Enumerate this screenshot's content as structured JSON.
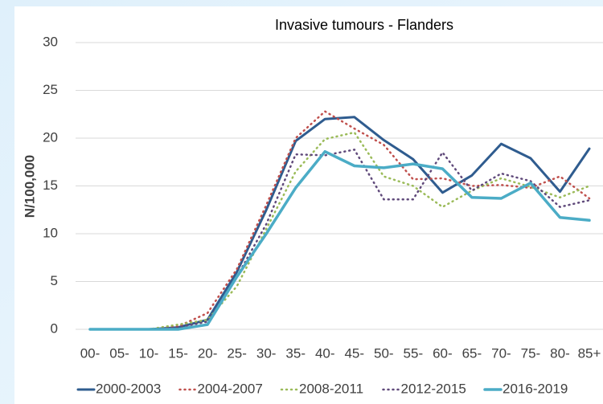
{
  "chart_data": {
    "type": "line",
    "title": "Invasive tumours - Flanders",
    "y_label": "N/100,000",
    "categories": [
      "00-",
      "05-",
      "10-",
      "15-",
      "20-",
      "25-",
      "30-",
      "35-",
      "40-",
      "45-",
      "50-",
      "55-",
      "60-",
      "65-",
      "70-",
      "75-",
      "80-",
      "85+"
    ],
    "series": [
      {
        "name": "2000-2003",
        "color": "#2f5c8f",
        "dash": "solid",
        "values": [
          0,
          0,
          0,
          0.2,
          1.0,
          6,
          12.5,
          19.7,
          22,
          22.2,
          19.8,
          17.8,
          14.3,
          16.1,
          19.4,
          17.9,
          14.4,
          18.9
        ]
      },
      {
        "name": "2004-2007",
        "color": "#c0504d",
        "dash": "dotted",
        "values": [
          0,
          0,
          0,
          0.3,
          1.7,
          6.3,
          13,
          20,
          22.8,
          21,
          19.3,
          15.7,
          15.8,
          15,
          15.1,
          14.8,
          16,
          13.7
        ]
      },
      {
        "name": "2008-2011",
        "color": "#9bbb59",
        "dash": "dotted",
        "values": [
          0,
          0,
          0,
          0.5,
          1,
          4.5,
          10.5,
          16.5,
          19.9,
          20.6,
          16,
          15,
          12.8,
          14.5,
          15.8,
          14.9,
          13.8,
          15
        ]
      },
      {
        "name": "2012-2015",
        "color": "#604a7b",
        "dash": "dotted",
        "values": [
          0,
          0,
          0,
          0.2,
          0.8,
          5.5,
          11,
          18.3,
          18.2,
          18.8,
          13.6,
          13.6,
          18.5,
          14.5,
          16.3,
          15.5,
          12.8,
          13.5
        ]
      },
      {
        "name": "2016-2019",
        "color": "#4bacc6",
        "dash": "solid",
        "values": [
          0,
          0,
          0,
          0,
          0.5,
          5.5,
          10,
          14.8,
          18.6,
          17.1,
          16.9,
          17.3,
          16.8,
          13.8,
          13.7,
          15.3,
          11.7,
          11.4
        ]
      }
    ],
    "ylim": [
      0,
      30
    ],
    "yticks": [
      0,
      5,
      10,
      15,
      20,
      25,
      30
    ],
    "grid": true,
    "legend": "bottom"
  }
}
